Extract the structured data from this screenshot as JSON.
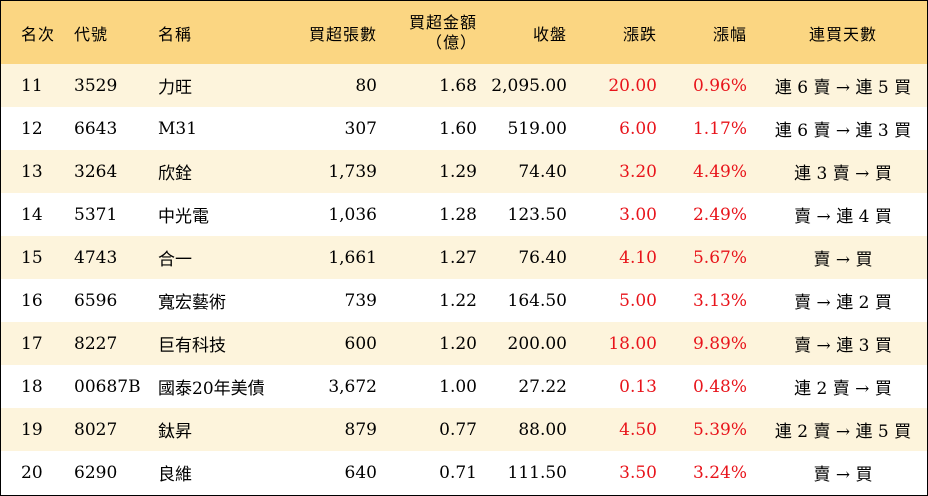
{
  "headers": {
    "rank": "名次",
    "code": "代號",
    "name": "名稱",
    "net_buy_lots": "買超張數",
    "net_buy_amount_line1": "買超金額",
    "net_buy_amount_line2": "（億）",
    "close": "收盤",
    "change": "漲跌",
    "change_pct": "漲幅",
    "streak": "連買天數"
  },
  "rows": [
    {
      "rank": "11",
      "code": "3529",
      "name": "力旺",
      "net_buy_lots": "80",
      "net_buy_amount": "1.68",
      "close": "2,095.00",
      "change": "20.00",
      "change_pct": "0.96%",
      "streak": "連 6 賣 → 連 5 買"
    },
    {
      "rank": "12",
      "code": "6643",
      "name": "M31",
      "net_buy_lots": "307",
      "net_buy_amount": "1.60",
      "close": "519.00",
      "change": "6.00",
      "change_pct": "1.17%",
      "streak": "連 6 賣 → 連 3 買"
    },
    {
      "rank": "13",
      "code": "3264",
      "name": "欣銓",
      "net_buy_lots": "1,739",
      "net_buy_amount": "1.29",
      "close": "74.40",
      "change": "3.20",
      "change_pct": "4.49%",
      "streak": "連 3 賣 → 買"
    },
    {
      "rank": "14",
      "code": "5371",
      "name": "中光電",
      "net_buy_lots": "1,036",
      "net_buy_amount": "1.28",
      "close": "123.50",
      "change": "3.00",
      "change_pct": "2.49%",
      "streak": "賣 → 連 4 買"
    },
    {
      "rank": "15",
      "code": "4743",
      "name": "合一",
      "net_buy_lots": "1,661",
      "net_buy_amount": "1.27",
      "close": "76.40",
      "change": "4.10",
      "change_pct": "5.67%",
      "streak": "賣 → 買"
    },
    {
      "rank": "16",
      "code": "6596",
      "name": "寬宏藝術",
      "net_buy_lots": "739",
      "net_buy_amount": "1.22",
      "close": "164.50",
      "change": "5.00",
      "change_pct": "3.13%",
      "streak": "賣 → 連 2 買"
    },
    {
      "rank": "17",
      "code": "8227",
      "name": "巨有科技",
      "net_buy_lots": "600",
      "net_buy_amount": "1.20",
      "close": "200.00",
      "change": "18.00",
      "change_pct": "9.89%",
      "streak": "賣 → 連 3 買"
    },
    {
      "rank": "18",
      "code": "00687B",
      "name": "國泰20年美債",
      "net_buy_lots": "3,672",
      "net_buy_amount": "1.00",
      "close": "27.22",
      "change": "0.13",
      "change_pct": "0.48%",
      "streak": "連 2 賣 → 買"
    },
    {
      "rank": "19",
      "code": "8027",
      "name": "鈦昇",
      "net_buy_lots": "879",
      "net_buy_amount": "0.77",
      "close": "88.00",
      "change": "4.50",
      "change_pct": "5.39%",
      "streak": "連 2 賣 → 連 5 買"
    },
    {
      "rank": "20",
      "code": "6290",
      "name": "良維",
      "net_buy_lots": "640",
      "net_buy_amount": "0.71",
      "close": "111.50",
      "change": "3.50",
      "change_pct": "3.24%",
      "streak": "賣 → 買"
    }
  ],
  "colors": {
    "header_bg": "#fbd682",
    "odd_row_bg": "#fdf4dc",
    "even_row_bg": "#ffffff",
    "up": "#e8141b"
  }
}
